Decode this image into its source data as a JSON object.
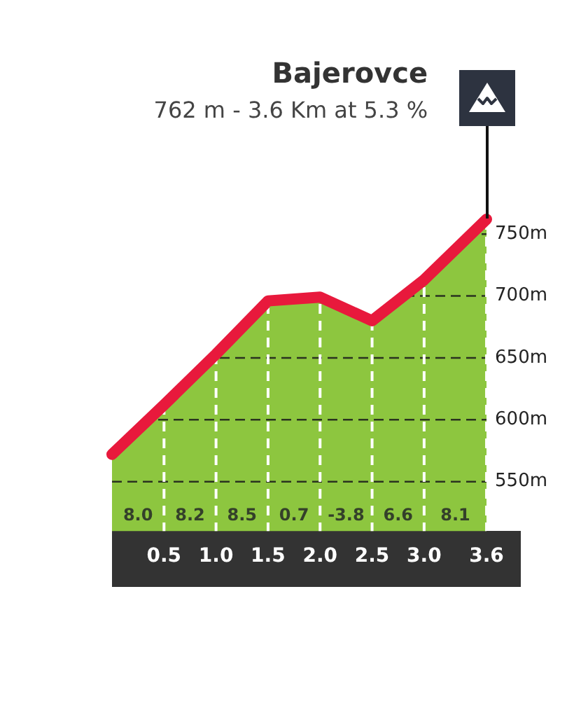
{
  "chart_data": {
    "type": "area",
    "title": "Bajerovce",
    "subtitle": "762 m - 3.6 Km at 5.3 %",
    "x": [
      0,
      0.5,
      1,
      1.5,
      2,
      2.5,
      3,
      3.6
    ],
    "series": [
      {
        "type": "area",
        "color": "#8dc63f",
        "values": [
          572,
          612,
          653,
          696,
          699,
          680,
          713,
          762
        ]
      },
      {
        "type": "line",
        "color": "#e8193c",
        "values": [
          572,
          612,
          653,
          696,
          699,
          680,
          713,
          762
        ]
      }
    ],
    "xlim": [
      0,
      3.6
    ],
    "xticks": [
      0.5,
      {
        "value": 1,
        "label": "1.0"
      },
      1.5,
      {
        "value": 2,
        "label": "2.0"
      },
      2.5,
      {
        "value": 3,
        "label": "3.0"
      },
      3.6
    ],
    "ylim": [
      510,
      775
    ],
    "yticks": [
      {
        "value": 550,
        "label": "550m"
      },
      {
        "value": 600,
        "label": "600m"
      },
      {
        "value": 650,
        "label": "650m"
      },
      {
        "value": 700,
        "label": "700m"
      },
      {
        "value": 750,
        "label": "750m"
      }
    ],
    "grid": true,
    "annotations": [
      "8.0",
      "8.2",
      "8.5",
      "0.7",
      "-3.8",
      "6.6",
      "8.1"
    ]
  }
}
